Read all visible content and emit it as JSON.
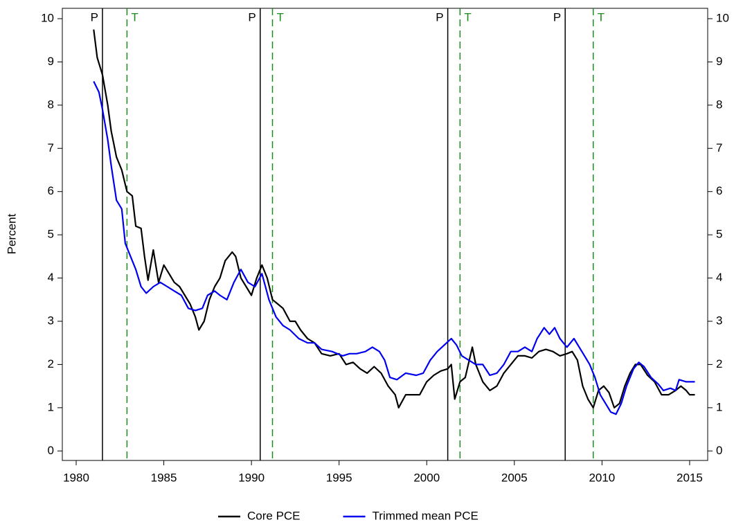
{
  "chart_data": {
    "type": "line",
    "y_label": "Percent",
    "xlim": [
      1979.21,
      2016.03
    ],
    "xticks": [
      1980,
      1985,
      1990,
      1995,
      2000,
      2005,
      2010,
      2015
    ],
    "ylim": [
      -0.22,
      10.24
    ],
    "yticks": [
      0,
      1,
      2,
      3,
      4,
      5,
      6,
      7,
      8,
      9,
      10
    ],
    "y2lim": [
      -0.22,
      10.24
    ],
    "y2ticks": [
      0,
      1,
      2,
      3,
      4,
      5,
      6,
      7,
      8,
      9,
      10
    ],
    "peaks": {
      "label": "P",
      "color": "#000000",
      "x": [
        1981.5,
        1990.5,
        2001.2,
        2007.9
      ]
    },
    "troughs": {
      "label": "T",
      "color": "#1a8a1a",
      "x": [
        1982.9,
        1991.2,
        2001.9,
        2009.5
      ]
    },
    "series": [
      {
        "name": "Core PCE",
        "color": "#000000",
        "x": [
          1981.0,
          1981.2,
          1981.5,
          1981.8,
          1982.0,
          1982.3,
          1982.6,
          1982.9,
          1983.2,
          1983.4,
          1983.7,
          1983.9,
          1984.1,
          1984.4,
          1984.7,
          1985.0,
          1985.3,
          1985.6,
          1985.9,
          1986.2,
          1986.5,
          1986.8,
          1987.0,
          1987.3,
          1987.6,
          1987.9,
          1988.2,
          1988.5,
          1988.9,
          1989.1,
          1989.4,
          1989.7,
          1990.0,
          1990.3,
          1990.6,
          1990.9,
          1991.2,
          1991.5,
          1991.8,
          1992.2,
          1992.5,
          1992.8,
          1993.2,
          1993.6,
          1994.0,
          1994.5,
          1995.0,
          1995.4,
          1995.8,
          1996.2,
          1996.6,
          1997.0,
          1997.4,
          1997.8,
          1998.2,
          1998.4,
          1998.8,
          1999.2,
          1999.6,
          2000.0,
          2000.4,
          2000.8,
          2001.2,
          2001.4,
          2001.6,
          2001.9,
          2002.2,
          2002.6,
          2002.8,
          2003.2,
          2003.6,
          2004.0,
          2004.4,
          2004.8,
          2005.2,
          2005.6,
          2006.0,
          2006.4,
          2006.8,
          2007.2,
          2007.6,
          2008.0,
          2008.3,
          2008.6,
          2008.9,
          2009.2,
          2009.5,
          2009.8,
          2010.1,
          2010.4,
          2010.7,
          2011.0,
          2011.3,
          2011.6,
          2011.9,
          2012.2,
          2012.6,
          2013.0,
          2013.4,
          2013.8,
          2014.2,
          2014.5,
          2014.8,
          2015.0,
          2015.3
        ],
        "values": [
          9.75,
          9.1,
          8.7,
          8.0,
          7.4,
          6.8,
          6.5,
          6.0,
          5.9,
          5.2,
          5.15,
          4.5,
          3.95,
          4.65,
          3.9,
          4.3,
          4.1,
          3.9,
          3.8,
          3.6,
          3.4,
          3.1,
          2.8,
          3.0,
          3.5,
          3.8,
          4.0,
          4.4,
          4.6,
          4.5,
          4.0,
          3.8,
          3.6,
          4.0,
          4.3,
          4.0,
          3.5,
          3.4,
          3.3,
          3.0,
          3.0,
          2.8,
          2.6,
          2.5,
          2.25,
          2.2,
          2.25,
          2.0,
          2.05,
          1.9,
          1.8,
          1.95,
          1.8,
          1.5,
          1.3,
          1.0,
          1.3,
          1.3,
          1.3,
          1.6,
          1.75,
          1.85,
          1.9,
          2.0,
          1.2,
          1.6,
          1.7,
          2.4,
          2.0,
          1.6,
          1.4,
          1.5,
          1.8,
          2.0,
          2.2,
          2.2,
          2.15,
          2.3,
          2.35,
          2.3,
          2.2,
          2.25,
          2.3,
          2.1,
          1.5,
          1.2,
          1.0,
          1.4,
          1.5,
          1.35,
          1.0,
          1.1,
          1.5,
          1.8,
          2.0,
          2.0,
          1.75,
          1.6,
          1.3,
          1.3,
          1.4,
          1.5,
          1.4,
          1.3,
          1.3
        ]
      },
      {
        "name": "Trimmed mean PCE",
        "color": "#0000ee",
        "x": [
          1981.0,
          1981.3,
          1981.5,
          1981.8,
          1982.0,
          1982.3,
          1982.6,
          1982.8,
          1983.1,
          1983.4,
          1983.7,
          1984.0,
          1984.4,
          1984.8,
          1985.2,
          1985.6,
          1986.0,
          1986.4,
          1986.8,
          1987.2,
          1987.5,
          1987.9,
          1988.2,
          1988.6,
          1989.0,
          1989.4,
          1989.8,
          1990.2,
          1990.6,
          1991.0,
          1991.4,
          1991.8,
          1992.2,
          1992.7,
          1993.2,
          1993.6,
          1994.0,
          1994.6,
          1995.2,
          1995.6,
          1996.0,
          1996.5,
          1996.9,
          1997.3,
          1997.6,
          1997.9,
          1998.3,
          1998.8,
          1999.4,
          1999.8,
          2000.2,
          2000.6,
          2001.0,
          2001.4,
          2001.7,
          2002.0,
          2002.4,
          2002.8,
          2003.2,
          2003.6,
          2004.0,
          2004.4,
          2004.8,
          2005.2,
          2005.6,
          2006.0,
          2006.3,
          2006.7,
          2007.0,
          2007.3,
          2007.6,
          2008.0,
          2008.4,
          2008.7,
          2009.0,
          2009.3,
          2009.6,
          2009.9,
          2010.2,
          2010.5,
          2010.8,
          2011.1,
          2011.4,
          2011.8,
          2012.1,
          2012.4,
          2012.8,
          2013.2,
          2013.5,
          2013.9,
          2014.2,
          2014.4,
          2014.8,
          2015.3
        ],
        "values": [
          8.55,
          8.3,
          7.9,
          7.2,
          6.6,
          5.8,
          5.6,
          4.8,
          4.5,
          4.2,
          3.8,
          3.65,
          3.8,
          3.9,
          3.8,
          3.7,
          3.6,
          3.3,
          3.25,
          3.3,
          3.6,
          3.7,
          3.6,
          3.5,
          3.9,
          4.2,
          3.9,
          3.8,
          4.1,
          3.5,
          3.1,
          2.9,
          2.8,
          2.6,
          2.5,
          2.5,
          2.35,
          2.3,
          2.2,
          2.25,
          2.25,
          2.3,
          2.4,
          2.3,
          2.1,
          1.7,
          1.65,
          1.8,
          1.75,
          1.8,
          2.1,
          2.3,
          2.45,
          2.6,
          2.45,
          2.2,
          2.1,
          2.0,
          2.0,
          1.75,
          1.8,
          2.0,
          2.3,
          2.3,
          2.4,
          2.3,
          2.6,
          2.85,
          2.7,
          2.85,
          2.6,
          2.4,
          2.6,
          2.4,
          2.2,
          2.0,
          1.7,
          1.3,
          1.1,
          0.9,
          0.85,
          1.1,
          1.5,
          1.9,
          2.05,
          1.95,
          1.7,
          1.55,
          1.4,
          1.45,
          1.4,
          1.65,
          1.6,
          1.6
        ]
      }
    ]
  }
}
